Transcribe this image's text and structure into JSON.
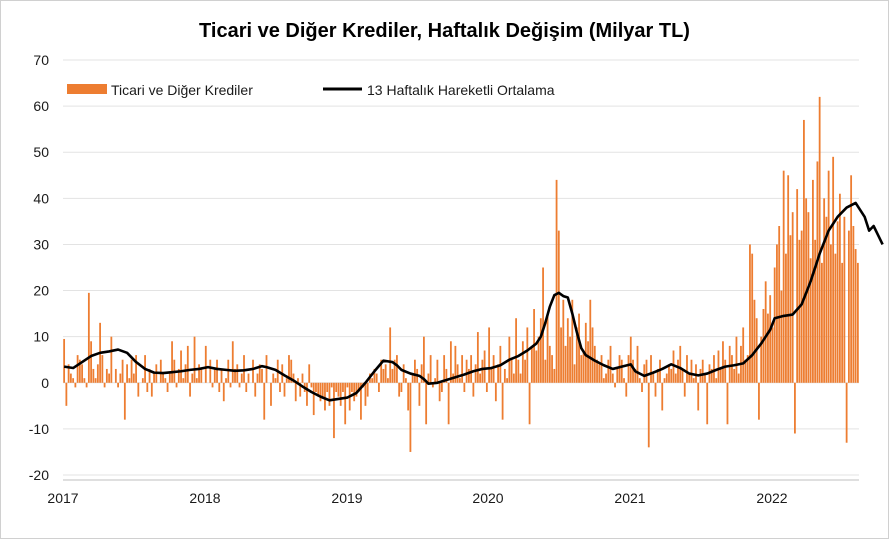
{
  "chart_data": {
    "type": "bar",
    "title": "Ticari ve Diğer Krediler, Haftalık Değişim (Milyar TL)",
    "xlabel": "",
    "ylabel": "",
    "ylim": [
      -20,
      70
    ],
    "yticks": [
      "70",
      "60",
      "50",
      "40",
      "30",
      "20",
      "10",
      "0",
      "-10",
      "-20"
    ],
    "xticks": [
      "2017",
      "2018",
      "2019",
      "2020",
      "2021",
      "2022"
    ],
    "x_range": [
      "2017-01",
      "2022-08"
    ],
    "grid": "horizontal",
    "legend_position": "top-left",
    "colors": {
      "bars": "#ED7D31",
      "line": "#000000",
      "grid": "#e3e3e3",
      "axis": "#bfbfbf"
    },
    "series": [
      {
        "name": "Ticari ve Diğer Krediler",
        "kind": "bar",
        "values": [
          9.5,
          -5,
          4,
          2,
          1,
          -1,
          6,
          5,
          4,
          1,
          -1,
          19.5,
          9,
          3,
          1,
          4,
          13,
          6,
          -1,
          3,
          2,
          10,
          0,
          3,
          -1,
          2,
          5,
          -8,
          4,
          1,
          5,
          2,
          6,
          -3,
          0,
          1,
          6,
          -2,
          3,
          -3,
          2,
          4,
          0,
          5,
          2,
          1,
          -2,
          2,
          9,
          5,
          -1,
          3,
          7,
          1,
          4,
          8,
          -3,
          2,
          10,
          1,
          4,
          3,
          0,
          8,
          0,
          5,
          -1,
          3,
          5,
          -2,
          3,
          -4,
          1,
          5,
          -1,
          9,
          3,
          4,
          -1,
          2,
          6,
          -2,
          2,
          0,
          5,
          -3,
          2,
          4,
          3,
          -8,
          6,
          0,
          -5,
          2,
          1,
          5,
          -2,
          4,
          -3,
          1,
          6,
          5,
          2,
          -4,
          1,
          -3,
          2,
          -2,
          -5,
          4,
          -1,
          -7,
          -2,
          -3,
          -4,
          -3,
          -6,
          -2,
          -5,
          -1,
          -12,
          -2,
          -3,
          -5,
          -2,
          -9,
          -1,
          -6,
          -2,
          -4,
          -3,
          -2,
          -8,
          -1,
          -5,
          -3,
          2,
          1,
          3,
          2,
          -2,
          5,
          3,
          4,
          1,
          12,
          3,
          5,
          6,
          -3,
          -2,
          4,
          1,
          -6,
          -15,
          2,
          5,
          3,
          -5,
          4,
          10,
          -9,
          2,
          6,
          -1,
          1,
          5,
          -4,
          -2,
          6,
          3,
          -9,
          9,
          2,
          8,
          4,
          1,
          6,
          -2,
          5,
          3,
          6,
          -3,
          4,
          11,
          2,
          5,
          7,
          -2,
          12,
          3,
          6,
          -4,
          4,
          8,
          -8,
          3,
          1,
          10,
          5,
          2,
          14,
          5,
          2,
          9,
          5,
          12,
          -9,
          8,
          16,
          7,
          10,
          14,
          25,
          5,
          15,
          8,
          6,
          3,
          44,
          33,
          12,
          18,
          8,
          14,
          10,
          18,
          4,
          12,
          15,
          6,
          7,
          13,
          9,
          18,
          12,
          8,
          5,
          4,
          6,
          1,
          2,
          5,
          8,
          2,
          -1,
          3,
          6,
          5,
          1,
          -3,
          6,
          10,
          5,
          3,
          8,
          1,
          -2,
          4,
          5,
          -14,
          6,
          2,
          -3,
          3,
          5,
          -6,
          1,
          2,
          4,
          3,
          7,
          2,
          5,
          8,
          3,
          -3,
          6,
          2,
          5,
          1,
          4,
          -6,
          3,
          5,
          2,
          -9,
          4,
          3,
          6,
          1,
          7,
          3,
          9,
          5,
          -9,
          8,
          6,
          3,
          10,
          2,
          8,
          12,
          5,
          6,
          30,
          28,
          18,
          14,
          -8,
          10,
          16,
          22,
          15,
          19,
          12,
          25,
          30,
          34,
          20,
          46,
          28,
          45,
          32,
          37,
          -11,
          42,
          31,
          33,
          57,
          40,
          37,
          27,
          44,
          31,
          48,
          62,
          26,
          40,
          36,
          46,
          30,
          49,
          28,
          35,
          41,
          26,
          36,
          -13,
          33,
          45,
          34,
          29,
          26
        ]
      },
      {
        "name": "13 Haftalık Hareketli Ortalama",
        "kind": "line",
        "points": [
          [
            0,
            3.5
          ],
          [
            4,
            3.2
          ],
          [
            8,
            4.5
          ],
          [
            12,
            5.8
          ],
          [
            16,
            6.5
          ],
          [
            20,
            6.8
          ],
          [
            24,
            7.2
          ],
          [
            28,
            6.5
          ],
          [
            32,
            4.5
          ],
          [
            36,
            3.0
          ],
          [
            40,
            2.2
          ],
          [
            44,
            2.1
          ],
          [
            48,
            2.3
          ],
          [
            52,
            2.5
          ],
          [
            56,
            2.8
          ],
          [
            60,
            3.0
          ],
          [
            64,
            3.4
          ],
          [
            68,
            3.0
          ],
          [
            72,
            2.8
          ],
          [
            76,
            2.6
          ],
          [
            80,
            2.7
          ],
          [
            84,
            3.0
          ],
          [
            88,
            3.6
          ],
          [
            90,
            3.4
          ],
          [
            94,
            2.8
          ],
          [
            98,
            1.6
          ],
          [
            102,
            0.5
          ],
          [
            106,
            -0.8
          ],
          [
            110,
            -2.0
          ],
          [
            114,
            -3.0
          ],
          [
            118,
            -3.8
          ],
          [
            122,
            -3.5
          ],
          [
            126,
            -3.2
          ],
          [
            130,
            -2.2
          ],
          [
            134,
            0.0
          ],
          [
            138,
            2.5
          ],
          [
            142,
            4.8
          ],
          [
            146,
            4.5
          ],
          [
            148,
            3.8
          ],
          [
            150,
            2.8
          ],
          [
            154,
            2.0
          ],
          [
            158,
            1.5
          ],
          [
            160,
            0.8
          ],
          [
            162,
            -0.2
          ],
          [
            166,
            0.0
          ],
          [
            170,
            0.6
          ],
          [
            174,
            1.2
          ],
          [
            178,
            1.8
          ],
          [
            182,
            2.5
          ],
          [
            186,
            3.0
          ],
          [
            190,
            3.2
          ],
          [
            194,
            3.8
          ],
          [
            198,
            5.0
          ],
          [
            202,
            5.8
          ],
          [
            206,
            7.0
          ],
          [
            210,
            8.5
          ],
          [
            212,
            10.0
          ],
          [
            214,
            13.0
          ],
          [
            216,
            16.5
          ],
          [
            218,
            19.0
          ],
          [
            220,
            19.5
          ],
          [
            222,
            18.8
          ],
          [
            224,
            18.5
          ],
          [
            226,
            15.0
          ],
          [
            228,
            11.0
          ],
          [
            230,
            7.5
          ],
          [
            232,
            6.0
          ],
          [
            236,
            4.8
          ],
          [
            240,
            3.8
          ],
          [
            244,
            3.0
          ],
          [
            248,
            3.5
          ],
          [
            252,
            4.0
          ],
          [
            254,
            2.5
          ],
          [
            258,
            1.5
          ],
          [
            262,
            2.2
          ],
          [
            266,
            3.0
          ],
          [
            270,
            4.0
          ],
          [
            274,
            3.2
          ],
          [
            278,
            2.0
          ],
          [
            282,
            1.6
          ],
          [
            286,
            2.0
          ],
          [
            290,
            2.8
          ],
          [
            294,
            3.5
          ],
          [
            298,
            3.8
          ],
          [
            302,
            4.2
          ],
          [
            306,
            6.0
          ],
          [
            310,
            8.5
          ],
          [
            314,
            11.5
          ],
          [
            316,
            14.0
          ],
          [
            320,
            14.5
          ],
          [
            324,
            14.8
          ],
          [
            328,
            17.0
          ],
          [
            332,
            22.0
          ],
          [
            336,
            28.0
          ],
          [
            340,
            33.0
          ],
          [
            344,
            36.0
          ],
          [
            348,
            38.0
          ],
          [
            352,
            39.0
          ],
          [
            356,
            36.0
          ],
          [
            358,
            33.0
          ],
          [
            360,
            34.0
          ],
          [
            362,
            32.0
          ],
          [
            364,
            30.0
          ]
        ]
      }
    ]
  }
}
